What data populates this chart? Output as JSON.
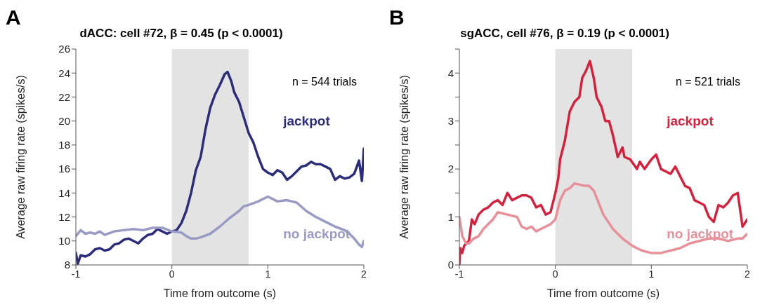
{
  "chart_data": [
    {
      "type": "line",
      "title": "dACC: cell #72, β = 0.45 (p < 0.0001)",
      "xlabel": "Time from outcome (s)",
      "ylabel": "Average raw firing rate (spikes/s)",
      "annotations": [
        "A",
        "n = 544 trials"
      ],
      "xlim": [
        -1,
        2
      ],
      "xticks": [
        -1,
        0,
        1,
        2
      ],
      "ylim": [
        8,
        26
      ],
      "yticks": [
        8,
        10,
        12,
        14,
        16,
        18,
        20,
        22,
        24,
        26
      ],
      "legend": false,
      "marker": "none",
      "line_style": "solid",
      "bands": [
        {
          "axis": "x",
          "from": 0,
          "to": 0.8,
          "color": "#e3e3e3"
        }
      ],
      "series": [
        {
          "name": "jackpot",
          "color": "#2b2d7a",
          "x": [
            -1,
            -0.98,
            -0.95,
            -0.9,
            -0.85,
            -0.8,
            -0.75,
            -0.7,
            -0.65,
            -0.6,
            -0.55,
            -0.5,
            -0.45,
            -0.4,
            -0.35,
            -0.3,
            -0.25,
            -0.2,
            -0.15,
            -0.1,
            -0.05,
            0,
            0.05,
            0.1,
            0.15,
            0.2,
            0.25,
            0.3,
            0.35,
            0.4,
            0.45,
            0.5,
            0.55,
            0.58,
            0.62,
            0.65,
            0.7,
            0.75,
            0.8,
            0.85,
            0.9,
            0.95,
            1,
            1.05,
            1.1,
            1.15,
            1.2,
            1.25,
            1.3,
            1.35,
            1.4,
            1.45,
            1.5,
            1.55,
            1.6,
            1.65,
            1.7,
            1.75,
            1.8,
            1.85,
            1.9,
            1.95,
            1.98,
            2
          ],
          "values": [
            9,
            8.1,
            8.8,
            8.7,
            8.9,
            9.3,
            9.4,
            9.2,
            9.3,
            9.7,
            9.8,
            10.1,
            10.2,
            10,
            9.8,
            10.2,
            10.5,
            10.6,
            11,
            10.8,
            10.6,
            10.8,
            10.9,
            11.5,
            12.5,
            14,
            15.9,
            17,
            19.3,
            21.1,
            22.2,
            23,
            23.9,
            24.1,
            23.3,
            22.4,
            21.6,
            20.3,
            19,
            18.2,
            17,
            16,
            15.7,
            15.5,
            15.9,
            15.7,
            15.1,
            15.4,
            15.8,
            16.2,
            16.3,
            16.6,
            16.4,
            16.4,
            16.2,
            16,
            15.1,
            15.4,
            15.2,
            15.3,
            15.6,
            16.7,
            15,
            17.7
          ]
        },
        {
          "name": "no jackpot",
          "color": "#9a9bc4",
          "x": [
            -1,
            -0.95,
            -0.9,
            -0.85,
            -0.8,
            -0.75,
            -0.7,
            -0.6,
            -0.5,
            -0.4,
            -0.3,
            -0.2,
            -0.1,
            0,
            0.1,
            0.15,
            0.2,
            0.25,
            0.3,
            0.4,
            0.5,
            0.6,
            0.7,
            0.75,
            0.8,
            0.9,
            1,
            1.05,
            1.1,
            1.2,
            1.3,
            1.4,
            1.5,
            1.6,
            1.7,
            1.8,
            1.85,
            1.9,
            1.95,
            1.98,
            2
          ],
          "values": [
            10.4,
            10.9,
            10.6,
            10.7,
            10.6,
            10.8,
            10.5,
            10.8,
            10.9,
            11,
            10.9,
            11.1,
            11.1,
            10.8,
            10.7,
            10.4,
            10.2,
            10.2,
            10.3,
            10.6,
            11.2,
            11.9,
            12.5,
            12.9,
            13,
            13.3,
            13.7,
            13.5,
            13.3,
            13.4,
            13.2,
            12.5,
            12,
            11.6,
            11.2,
            10.9,
            10.6,
            10.2,
            9.7,
            9.5,
            10
          ]
        }
      ]
    },
    {
      "type": "line",
      "title": "sgACC, cell #76, β = 0.19 (p < 0.0001)",
      "xlabel": "Time from outcome (s)",
      "ylabel": "Average raw firing rate (spikes/s)",
      "annotations": [
        "B",
        "n = 521 trials"
      ],
      "xlim": [
        -1,
        2
      ],
      "xticks": [
        -1,
        0,
        1,
        2
      ],
      "ylim": [
        0,
        4.5
      ],
      "yticks": [
        0,
        {
          "value": 0.5,
          "label": null
        },
        1,
        {
          "value": 1.5,
          "label": null
        },
        2,
        {
          "value": 2.5,
          "label": null
        },
        3,
        {
          "value": 3.5,
          "label": null
        },
        4,
        {
          "value": 4.5,
          "label": null
        }
      ],
      "legend": false,
      "marker": "none",
      "line_style": "solid",
      "bands": [
        {
          "axis": "x",
          "from": 0,
          "to": 0.8,
          "color": "#e3e3e3"
        }
      ],
      "series": [
        {
          "name": "jackpot",
          "color": "#d4213d",
          "x": [
            -1,
            -0.99,
            -0.97,
            -0.95,
            -0.9,
            -0.87,
            -0.84,
            -0.8,
            -0.75,
            -0.7,
            -0.65,
            -0.6,
            -0.55,
            -0.5,
            -0.45,
            -0.4,
            -0.35,
            -0.3,
            -0.25,
            -0.2,
            -0.15,
            -0.1,
            -0.05,
            0,
            0.03,
            0.05,
            0.1,
            0.15,
            0.2,
            0.25,
            0.28,
            0.32,
            0.36,
            0.4,
            0.43,
            0.48,
            0.52,
            0.56,
            0.6,
            0.65,
            0.7,
            0.72,
            0.78,
            0.85,
            0.88,
            0.93,
            1,
            1.05,
            1.1,
            1.2,
            1.25,
            1.35,
            1.4,
            1.45,
            1.5,
            1.55,
            1.6,
            1.65,
            1.7,
            1.75,
            1.8,
            1.85,
            1.9,
            1.95,
            2
          ],
          "values": [
            0,
            0.35,
            0.25,
            0.4,
            0.5,
            0.95,
            0.85,
            1.05,
            1.15,
            1.2,
            1.3,
            1.35,
            1.25,
            1.5,
            1.35,
            1.4,
            1.45,
            1.45,
            1.4,
            1.2,
            1.25,
            1.05,
            1.1,
            1.5,
            1.8,
            2.2,
            2.6,
            3.2,
            3.4,
            3.5,
            3.9,
            4.05,
            4.25,
            3.9,
            3.5,
            3.3,
            3,
            3,
            2.7,
            2.25,
            2.45,
            2.25,
            2.2,
            2,
            2.15,
            2,
            2.2,
            2.3,
            2,
            1.9,
            2.05,
            1.65,
            1.6,
            1.35,
            1.3,
            1.25,
            1,
            0.9,
            1.25,
            1.2,
            1.3,
            1.45,
            1.5,
            0.8,
            0.95
          ]
        },
        {
          "name": "no jackpot",
          "color": "#e8909a",
          "x": [
            -1,
            -0.97,
            -0.93,
            -0.9,
            -0.85,
            -0.8,
            -0.75,
            -0.7,
            -0.65,
            -0.6,
            -0.5,
            -0.4,
            -0.35,
            -0.3,
            -0.25,
            -0.2,
            -0.15,
            -0.1,
            -0.05,
            0,
            0.05,
            0.1,
            0.15,
            0.2,
            0.3,
            0.35,
            0.4,
            0.45,
            0.5,
            0.6,
            0.7,
            0.8,
            0.9,
            1,
            1.1,
            1.2,
            1.3,
            1.4,
            1.5,
            1.6,
            1.7,
            1.8,
            1.9,
            1.95,
            2
          ],
          "values": [
            1,
            0.6,
            0.45,
            0.45,
            0.55,
            0.6,
            0.75,
            0.85,
            0.95,
            1.1,
            1.05,
            1,
            0.8,
            0.75,
            0.8,
            0.7,
            0.75,
            0.8,
            0.85,
            0.95,
            1.35,
            1.55,
            1.6,
            1.7,
            1.65,
            1.65,
            1.55,
            1.3,
            1.05,
            0.75,
            0.55,
            0.4,
            0.3,
            0.25,
            0.25,
            0.3,
            0.35,
            0.45,
            0.5,
            0.55,
            0.55,
            0.5,
            0.55,
            0.55,
            0.65
          ]
        }
      ]
    }
  ]
}
